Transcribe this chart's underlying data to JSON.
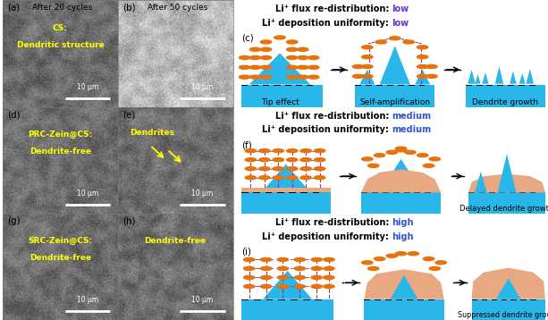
{
  "colors": {
    "cyan": "#29b6e8",
    "orange": "#e8720c",
    "purple": "#7b3fa0",
    "yellow": "#ffff00",
    "salmon": "#e8a882",
    "bg": "#ffffff",
    "purple_word": "#6633cc",
    "blue_word": "#3355cc",
    "black": "#000000",
    "white": "#ffffff"
  },
  "sem_panels": {
    "a": {
      "seed": 42,
      "label": "(a)",
      "title": "After 20 cycles",
      "yellow_lines": [
        "CS:",
        "Dendritic structure"
      ],
      "scale": "10 μm",
      "bright": false,
      "arrows": false
    },
    "b": {
      "seed": 99,
      "label": "(b)",
      "title": "After 50 cycles",
      "yellow_lines": [],
      "scale": "10 μm",
      "bright": true,
      "arrows": false
    },
    "d": {
      "seed": 7,
      "label": "(d)",
      "title": null,
      "yellow_lines": [
        "PRC-Zein@CS:",
        "Dendrite-free"
      ],
      "scale": "10 μm",
      "bright": false,
      "arrows": false
    },
    "e": {
      "seed": 55,
      "label": "(e)",
      "title": null,
      "yellow_lines": [],
      "scale": "10 μm",
      "bright": false,
      "arrows": true,
      "arrow_label": "Dendrites"
    },
    "g": {
      "seed": 21,
      "label": "(g)",
      "title": null,
      "yellow_lines": [
        "SRC-Zein@CS:",
        "Dendrite-free"
      ],
      "scale": "10 μm",
      "bright": false,
      "arrows": false
    },
    "h": {
      "seed": 63,
      "label": "(h)",
      "title": null,
      "yellow_lines": [
        "Dendrite-free"
      ],
      "scale": "10 μm",
      "bright": false,
      "arrows": false
    }
  },
  "schema_panels": {
    "c": {
      "label": "(c)",
      "line1_b": "Li⁺ flux re-distribution: ",
      "line1_c": "low",
      "line2_b": "Li⁺ deposition uniformity: ",
      "line2_c": "low",
      "word_color": "#6633cc",
      "caption1": "Tip effect",
      "caption2": "Self-amplification",
      "caption3": "Dendrite growth"
    },
    "f": {
      "label": "(f)",
      "line1_b": "Li⁺ flux re-distribution: ",
      "line1_c": "medium",
      "line2_b": "Li⁺ deposition uniformity: ",
      "line2_c": "medium",
      "word_color": "#3355cc",
      "caption1": "",
      "caption2": "",
      "caption3": "Delayed dendrite growth"
    },
    "i": {
      "label": "(i)",
      "line1_b": "Li⁺ flux re-distribution: ",
      "line1_c": "high",
      "line2_b": "Li⁺ deposition uniformity: ",
      "line2_c": "high",
      "word_color": "#3355cc",
      "caption1": "",
      "caption2": "",
      "caption3": "Suppressed dendrite growth"
    }
  }
}
